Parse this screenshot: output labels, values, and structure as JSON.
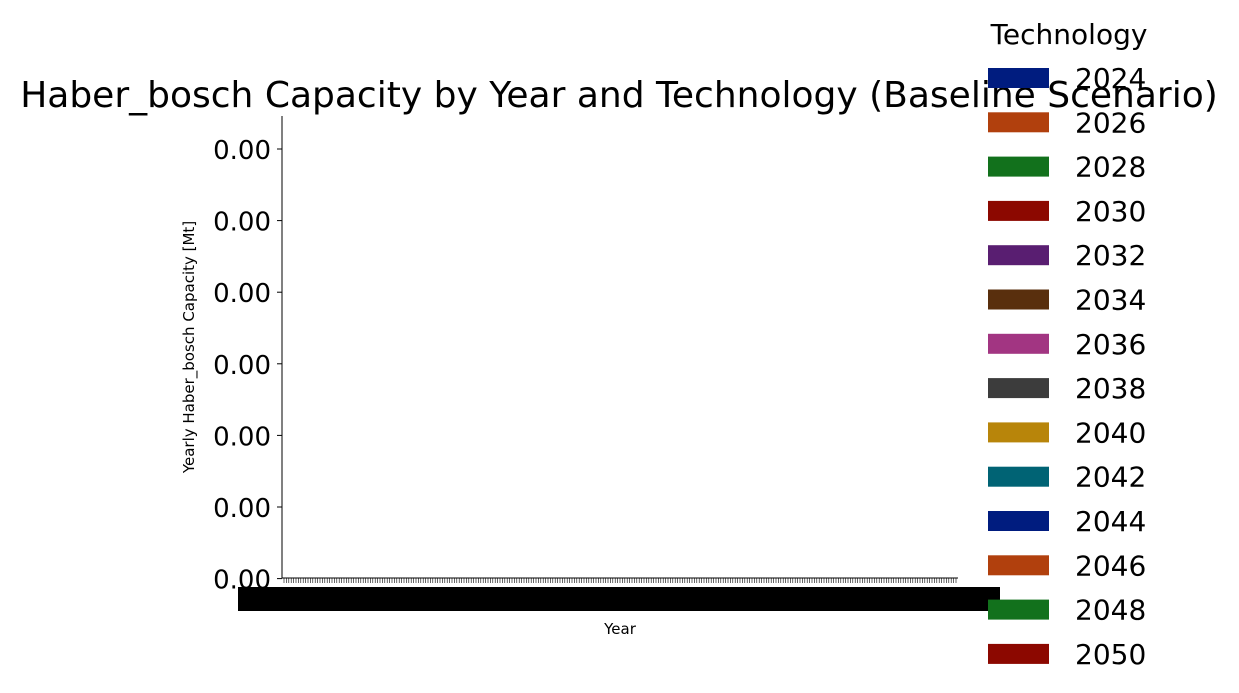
{
  "chart_data": {
    "type": "bar",
    "title": "Haber_bosch Capacity by Year and Technology (Baseline Scenario)",
    "xlabel": "Year",
    "ylabel": "Yearly Haber_bosch Capacity [Mt]",
    "y_tick_labels": [
      "0.00",
      "0.00",
      "0.00",
      "0.00",
      "0.00",
      "0.00",
      "0.00"
    ],
    "legend": {
      "title": "Technology",
      "placement": "right",
      "entries": [
        {
          "label": "2024",
          "color": "#001c7f"
        },
        {
          "label": "2026",
          "color": "#b1400d"
        },
        {
          "label": "2028",
          "color": "#12711c"
        },
        {
          "label": "2030",
          "color": "#8c0800"
        },
        {
          "label": "2032",
          "color": "#591e71"
        },
        {
          "label": "2034",
          "color": "#592f0d"
        },
        {
          "label": "2036",
          "color": "#a23582"
        },
        {
          "label": "2038",
          "color": "#3c3c3c"
        },
        {
          "label": "2040",
          "color": "#b8850a"
        },
        {
          "label": "2042",
          "color": "#006374"
        },
        {
          "label": "2044",
          "color": "#001c7f"
        },
        {
          "label": "2046",
          "color": "#b1400d"
        },
        {
          "label": "2048",
          "color": "#12711c"
        },
        {
          "label": "2050",
          "color": "#8c0800"
        }
      ]
    },
    "series_values_all_zero": true,
    "grid": false
  }
}
